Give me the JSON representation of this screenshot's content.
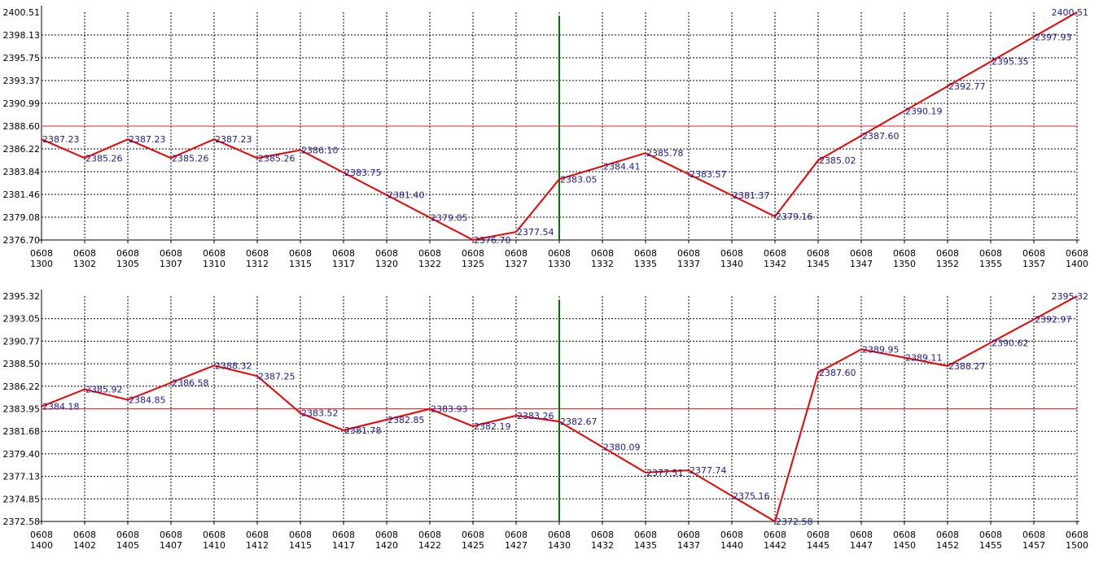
{
  "chart_data": [
    {
      "type": "line",
      "x": [
        "1300",
        "1302",
        "1305",
        "1307",
        "1310",
        "1312",
        "1315",
        "1317",
        "1320",
        "1322",
        "1325",
        "1327",
        "1330",
        "1332",
        "1335",
        "1337",
        "1340",
        "1342",
        "1345",
        "1347",
        "1350",
        "1352",
        "1355",
        "1357",
        "1400"
      ],
      "x_date_prefix": "0608",
      "values": [
        2387.23,
        2385.26,
        2387.23,
        2385.26,
        2387.23,
        2385.26,
        2386.1,
        2383.75,
        2381.4,
        2379.05,
        2376.7,
        2377.54,
        2383.05,
        2384.41,
        2385.78,
        2383.57,
        2381.37,
        2379.16,
        2385.02,
        2387.6,
        2390.19,
        2392.77,
        2395.35,
        2397.93,
        2400.51
      ],
      "point_labels": [
        "2387.23",
        "2385.26",
        "2387.23",
        "2385.26",
        "2387.23",
        "2385.26",
        "2386.10",
        "2383.75",
        "2381.40",
        "2379.05",
        "2376.70",
        "2377.54",
        "2383.05",
        "2384.41",
        "2385.78",
        "2383.57",
        "2381.37",
        "2379.16",
        "2385.02",
        "2387.60",
        "2390.19",
        "2392.77",
        "2395.35",
        "2397.93",
        "2400.51"
      ],
      "ylim": [
        2376.7,
        2400.51
      ],
      "yticks": [
        "2400.51",
        "2398.13",
        "2395.75",
        "2393.37",
        "2390.99",
        "2388.60",
        "2386.22",
        "2383.84",
        "2381.46",
        "2379.08",
        "2376.70"
      ],
      "reference_line_y": 2388.6,
      "vertical_marker_x": "1330",
      "grid": true,
      "colors": {
        "line": "#ee0000",
        "ref_line": "#ee2222",
        "marker": "#007700",
        "labels": "#1a1a9c",
        "grid": "#000000"
      }
    },
    {
      "type": "line",
      "x": [
        "1400",
        "1402",
        "1405",
        "1407",
        "1410",
        "1412",
        "1415",
        "1417",
        "1420",
        "1422",
        "1425",
        "1427",
        "1430",
        "1432",
        "1435",
        "1437",
        "1440",
        "1442",
        "1445",
        "1447",
        "1450",
        "1452",
        "1455",
        "1457",
        "1500"
      ],
      "x_date_prefix": "0608",
      "values": [
        2384.18,
        2385.92,
        2384.85,
        2386.58,
        2388.32,
        2387.25,
        2383.52,
        2381.78,
        2382.85,
        2383.93,
        2382.19,
        2383.26,
        2382.67,
        2380.09,
        2377.51,
        2377.74,
        2375.16,
        2372.58,
        2387.6,
        2389.95,
        2389.11,
        2388.27,
        2390.62,
        2392.97,
        2395.32
      ],
      "point_labels": [
        "2384.18",
        "2385.92",
        "2384.85",
        "2386.58",
        "2388.32",
        "2387.25",
        "2383.52",
        "2381.78",
        "2382.85",
        "2383.93",
        "2382.19",
        "2383.26",
        "2382.67",
        "2380.09",
        "2377.51",
        "2377.74",
        "2375.16",
        "2372.58",
        "2387.60",
        "2389.95",
        "2389.11",
        "2388.27",
        "2390.62",
        "2392.97",
        "2395.32"
      ],
      "ylim": [
        2372.58,
        2395.32
      ],
      "yticks": [
        "2395.32",
        "2393.05",
        "2390.77",
        "2388.50",
        "2386.22",
        "2383.95",
        "2381.68",
        "2379.40",
        "2377.13",
        "2374.85",
        "2372.58"
      ],
      "reference_line_y": 2383.95,
      "vertical_marker_x": "1430",
      "grid": true,
      "colors": {
        "line": "#ee0000",
        "ref_line": "#ee2222",
        "marker": "#007700",
        "labels": "#1a1a9c",
        "grid": "#000000"
      }
    }
  ]
}
